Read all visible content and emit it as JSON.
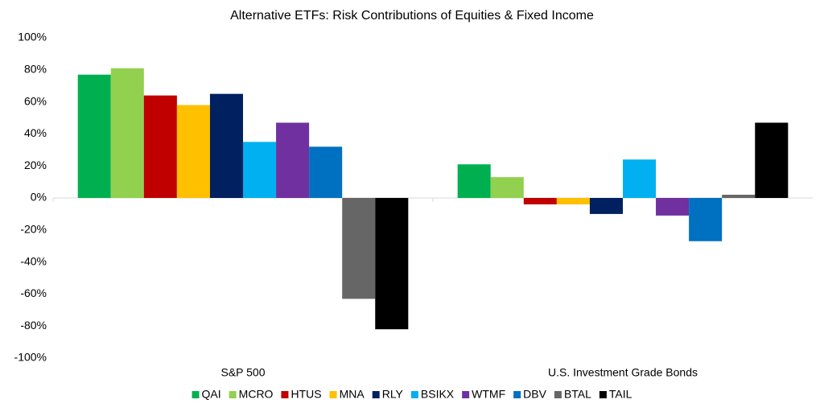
{
  "chart_data": {
    "type": "bar",
    "title": "Alternative ETFs: Risk Contributions of Equities & Fixed Income",
    "categories": [
      "S&P 500",
      "U.S. Investment Grade Bonds"
    ],
    "series": [
      {
        "name": "QAI",
        "color": "#00b050",
        "values": [
          77,
          21
        ]
      },
      {
        "name": "MCRO",
        "color": "#92d050",
        "values": [
          81,
          13
        ]
      },
      {
        "name": "HTUS",
        "color": "#c00000",
        "values": [
          64,
          -4
        ]
      },
      {
        "name": "MNA",
        "color": "#ffc000",
        "values": [
          58,
          -4
        ]
      },
      {
        "name": "RLY",
        "color": "#002060",
        "values": [
          65,
          -10
        ]
      },
      {
        "name": "BSIKX",
        "color": "#00b0f0",
        "values": [
          35,
          24
        ]
      },
      {
        "name": "WTMF",
        "color": "#7030a0",
        "values": [
          47,
          -11
        ]
      },
      {
        "name": "DBV",
        "color": "#0070c0",
        "values": [
          32,
          -27
        ]
      },
      {
        "name": "BTAL",
        "color": "#666666",
        "values": [
          -63,
          2
        ]
      },
      {
        "name": "TAIL",
        "color": "#000000",
        "values": [
          -82,
          47
        ]
      }
    ],
    "ylim": [
      -100,
      100
    ],
    "yticks": [
      {
        "value": -100,
        "label": "-100%"
      },
      {
        "value": -80,
        "label": "-80%"
      },
      {
        "value": -60,
        "label": "-60%"
      },
      {
        "value": -40,
        "label": "-40%"
      },
      {
        "value": -20,
        "label": "-20%"
      },
      {
        "value": 0,
        "label": "0%"
      },
      {
        "value": 20,
        "label": "20%"
      },
      {
        "value": 40,
        "label": "40%"
      },
      {
        "value": 60,
        "label": "60%"
      },
      {
        "value": 80,
        "label": "80%"
      },
      {
        "value": 100,
        "label": "100%"
      }
    ],
    "legend": "bottom"
  }
}
